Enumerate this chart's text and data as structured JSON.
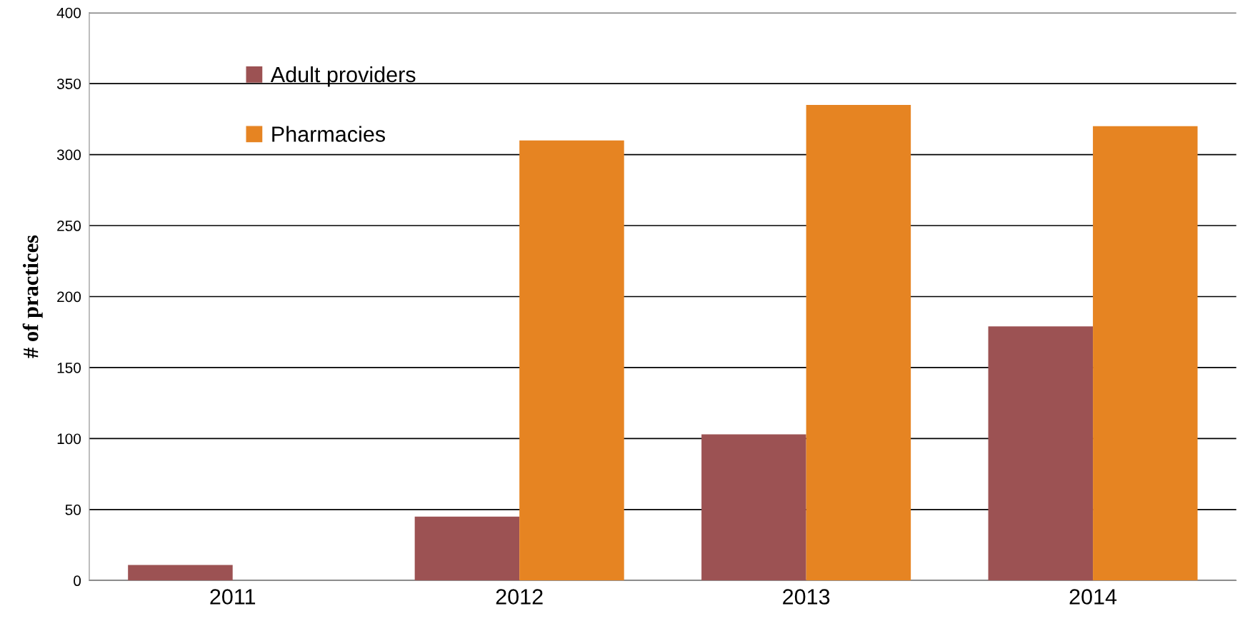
{
  "chart_data": {
    "type": "bar",
    "ylabel": "# of practices",
    "categories": [
      "2011",
      "2012",
      "2013",
      "2014"
    ],
    "series": [
      {
        "name": "Adult providers",
        "color": "#9c5253",
        "values": [
          11,
          45,
          103,
          179
        ]
      },
      {
        "name": "Pharmacies",
        "color": "#e68422",
        "values": [
          null,
          310,
          335,
          320
        ]
      }
    ],
    "ylim": [
      0,
      400
    ],
    "yticks": [
      0,
      50,
      100,
      150,
      200,
      250,
      300,
      350,
      400
    ],
    "grid": "y",
    "legend": "top left"
  }
}
